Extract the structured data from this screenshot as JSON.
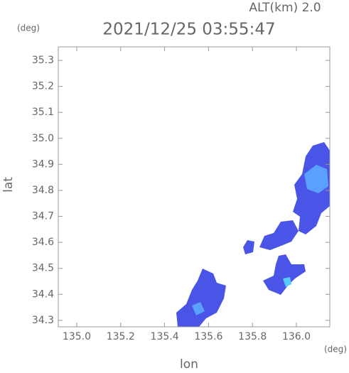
{
  "chart_data": {
    "type": "map",
    "title": "2021/12/25 03:55:47",
    "altitude_label": "ALT(km) 2.0",
    "x_unit": "(deg)",
    "y_unit": "(deg)",
    "x_label": "lon",
    "y_label": "lat",
    "xlim": [
      134.916,
      136.152
    ],
    "ylim": [
      34.275,
      35.352
    ],
    "xticks": [
      {
        "value": 135,
        "label": "135.0"
      },
      135.2,
      135.4,
      135.6,
      135.8,
      {
        "value": 136,
        "label": "136.0"
      }
    ],
    "yticks": [
      34.3,
      34.4,
      34.5,
      34.6,
      34.7,
      34.8,
      34.9,
      {
        "value": 35,
        "label": "35.0"
      },
      35.1,
      35.2,
      35.3
    ]
  }
}
